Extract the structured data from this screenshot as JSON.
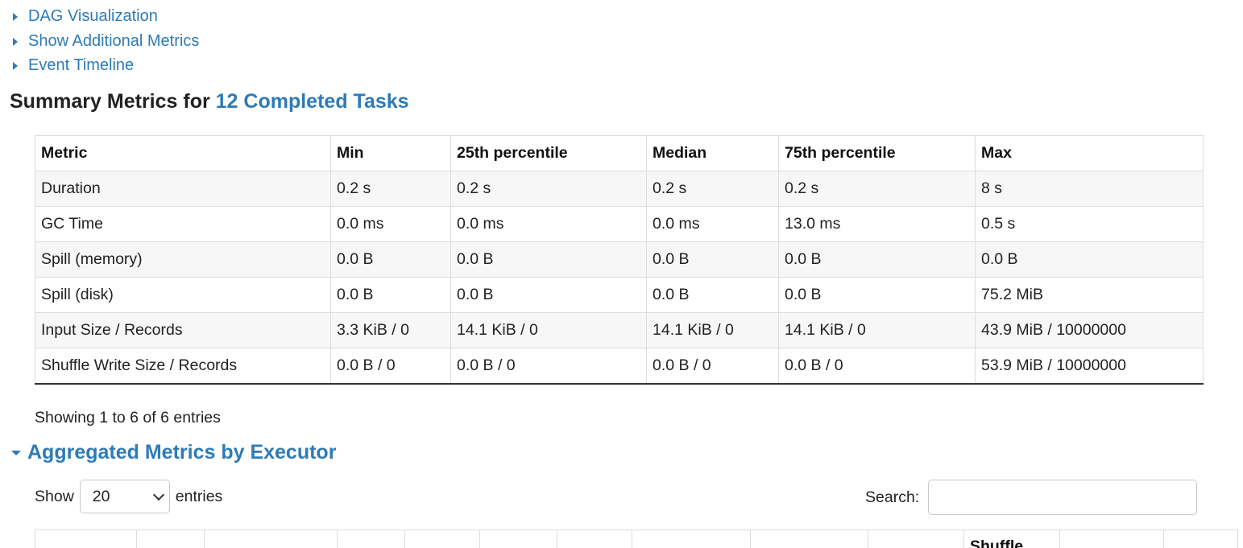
{
  "links": {
    "dag_visualization": "DAG Visualization",
    "show_additional_metrics": "Show Additional Metrics",
    "event_timeline": "Event Timeline"
  },
  "summary": {
    "title_prefix": "Summary Metrics for",
    "title_link": "12 Completed Tasks",
    "columns": [
      "Metric",
      "Min",
      "25th percentile",
      "Median",
      "75th percentile",
      "Max"
    ],
    "rows": [
      [
        "Duration",
        "0.2 s",
        "0.2 s",
        "0.2 s",
        "0.2 s",
        "8 s"
      ],
      [
        "GC Time",
        "0.0 ms",
        "0.0 ms",
        "0.0 ms",
        "13.0 ms",
        "0.5 s"
      ],
      [
        "Spill (memory)",
        "0.0 B",
        "0.0 B",
        "0.0 B",
        "0.0 B",
        "0.0 B"
      ],
      [
        "Spill (disk)",
        "0.0 B",
        "0.0 B",
        "0.0 B",
        "0.0 B",
        "75.2 MiB"
      ],
      [
        "Input Size / Records",
        "3.3 KiB / 0",
        "14.1 KiB / 0",
        "14.1 KiB / 0",
        "14.1 KiB / 0",
        "43.9 MiB / 10000000"
      ],
      [
        "Shuffle Write Size / Records",
        "0.0 B / 0",
        "0.0 B / 0",
        "0.0 B / 0",
        "0.0 B / 0",
        "53.9 MiB / 10000000"
      ]
    ],
    "showing_text": "Showing 1 to 6 of 6 entries"
  },
  "aggregated": {
    "title": "Aggregated Metrics by Executor",
    "show_label": "Show",
    "entries_value": "20",
    "entries_label": "entries",
    "search_label": "Search:",
    "search_value": "",
    "partial_header": "Shuffle"
  },
  "colors": {
    "link": "#2e7bb6",
    "text": "#222222",
    "stripe": "#f7f7f7"
  }
}
